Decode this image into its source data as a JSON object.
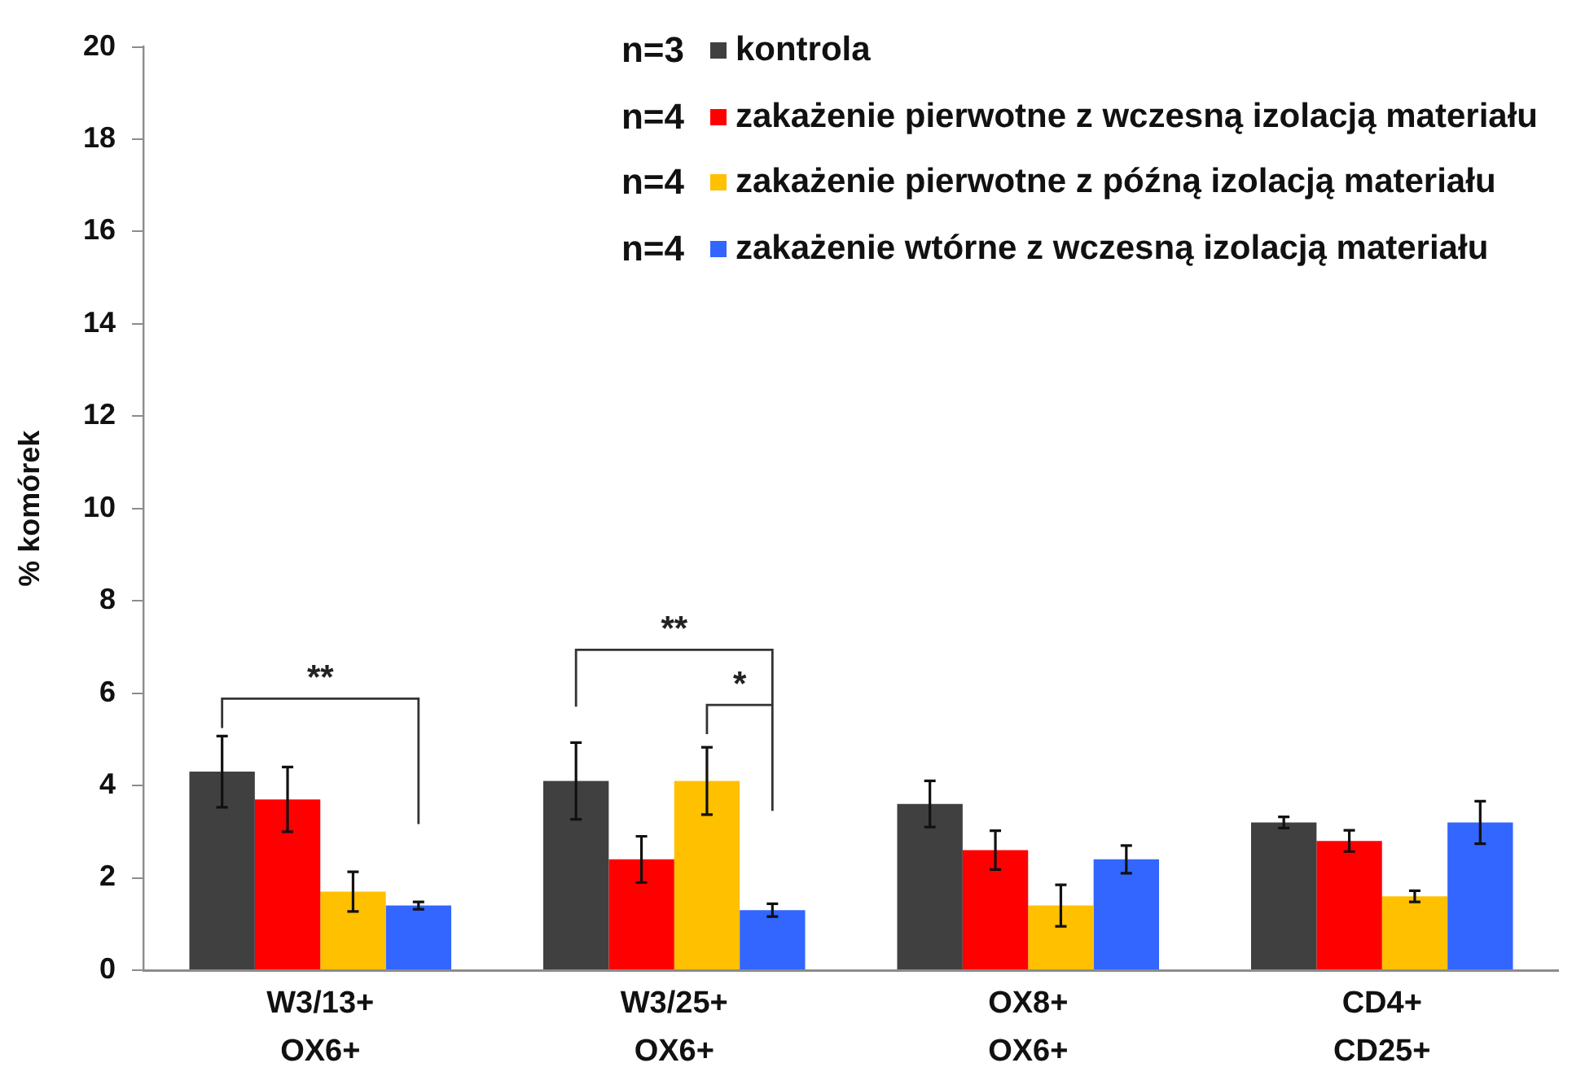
{
  "chart_data": {
    "type": "bar",
    "ylabel": "% komórek",
    "categories": [
      "W3/13+\nOX6+",
      "W3/25+\nOX6+",
      "OX8+\nOX6+",
      "CD4+\nCD25+"
    ],
    "series": [
      {
        "name": "kontrola",
        "color": "#404040",
        "values": [
          4.3,
          4.1,
          3.6,
          3.2
        ],
        "errors": [
          0.77,
          0.83,
          0.5,
          0.12
        ]
      },
      {
        "name": "zakażenie pierwotne z wczesną izolacją materiału",
        "color": "#ff0000",
        "values": [
          3.7,
          2.4,
          2.6,
          2.8
        ],
        "errors": [
          0.7,
          0.5,
          0.42,
          0.23
        ]
      },
      {
        "name": "zakażenie pierwotne z późną izolacją materiału",
        "color": "#ffc000",
        "values": [
          1.7,
          4.1,
          1.4,
          1.6
        ],
        "errors": [
          0.43,
          0.73,
          0.45,
          0.12
        ]
      },
      {
        "name": "zakażenie wtórne z wczesną izolacją materiału",
        "color": "#3366ff",
        "values": [
          1.4,
          1.3,
          2.4,
          3.2
        ],
        "errors": [
          0.08,
          0.14,
          0.3,
          0.46
        ]
      }
    ],
    "ylim": [
      0,
      20
    ],
    "yticks": [
      0,
      2,
      4,
      6,
      8,
      10,
      12,
      14,
      16,
      18,
      20
    ],
    "legend": "top right",
    "annotations": [
      "**",
      "**",
      "*",
      "n=3",
      "n=4",
      "n=4",
      "n=4"
    ]
  }
}
